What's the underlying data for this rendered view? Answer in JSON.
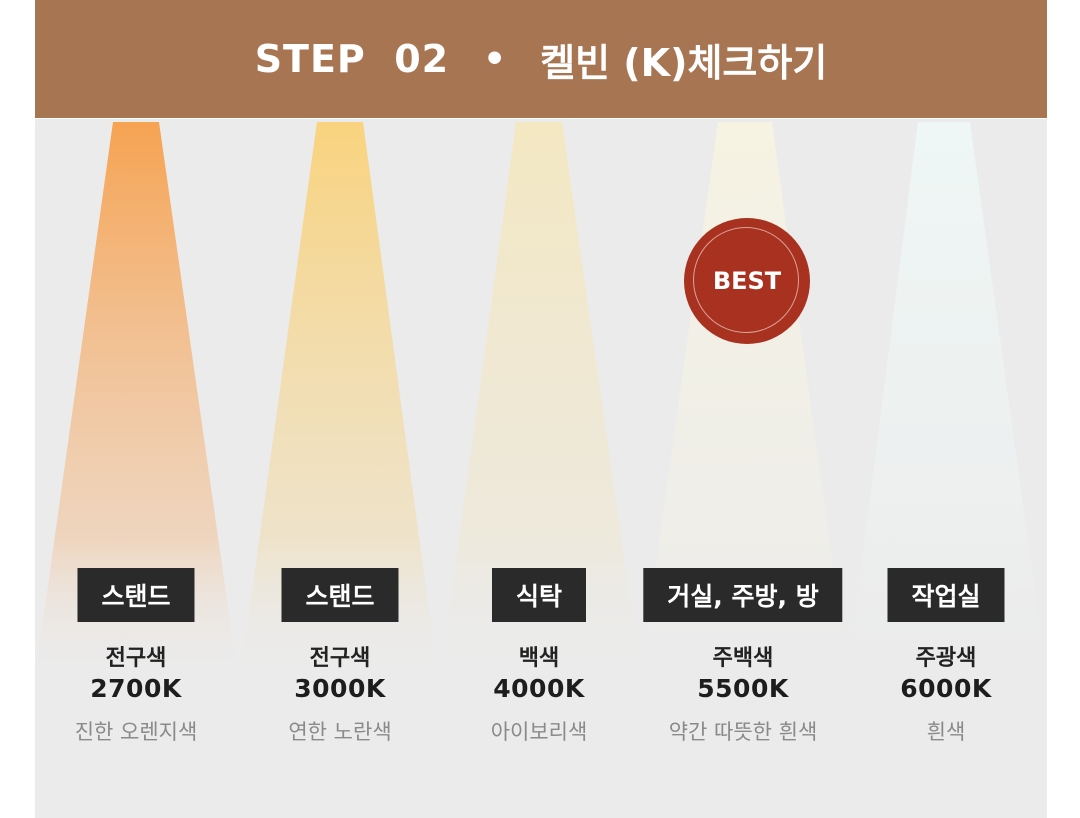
{
  "header": {
    "step": "STEP  02",
    "bullet": "•",
    "title": "켈빈 (K)체크하기"
  },
  "badge": {
    "label": "BEST"
  },
  "items": [
    {
      "place": "스탠드",
      "type": "전구색",
      "kelvin": "2700K",
      "desc": "진한 오렌지색",
      "color": "#f6a65c"
    },
    {
      "place": "스탠드",
      "type": "전구색",
      "kelvin": "3000K",
      "desc": "연한 노란색",
      "color": "#f9d68a"
    },
    {
      "place": "식탁",
      "type": "백색",
      "kelvin": "4000K",
      "desc": "아이보리색",
      "color": "#f4ecc8"
    },
    {
      "place": "거실, 주방, 방",
      "type": "주백색",
      "kelvin": "5500K",
      "desc": "약간 따뜻한 흰색",
      "color": "#f6f3e6"
    },
    {
      "place": "작업실",
      "type": "주광색",
      "kelvin": "6000K",
      "desc": "흰색",
      "color": "#eef5f4"
    }
  ]
}
